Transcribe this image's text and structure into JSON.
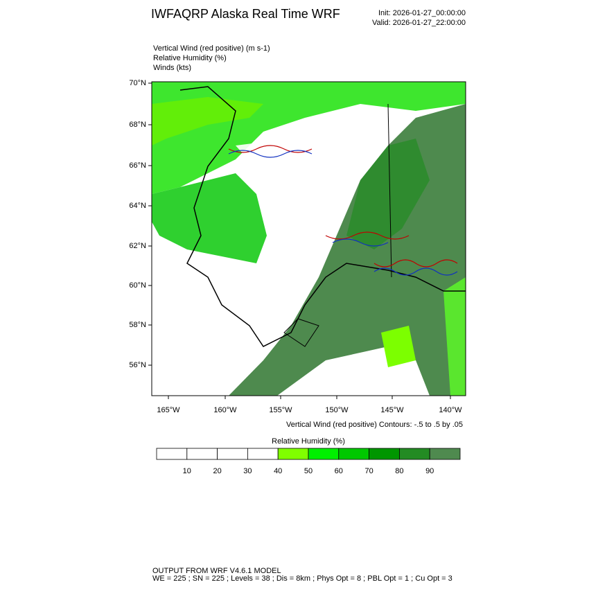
{
  "header": {
    "title": "IWFAQRP Alaska Real Time WRF",
    "init": "Init: 2026-01-27_00:00:00",
    "valid": "Valid: 2026-01-27_22:00:00"
  },
  "fields": [
    "Vertical Wind (red positive)   (m s-1)",
    "Relative Humidity   (%)",
    "Winds   (kts)"
  ],
  "map": {
    "lat_labels": [
      "70°N",
      "68°N",
      "66°N",
      "64°N",
      "62°N",
      "60°N",
      "58°N",
      "56°N"
    ],
    "lon_labels": [
      "165°W",
      "160°W",
      "155°W",
      "150°W",
      "145°W",
      "140°W"
    ],
    "contour_note": "Vertical Wind (red positive) Contours: -.5 to .5 by .05"
  },
  "colorbar": {
    "title": "Relative Humidity  (%)",
    "colors": [
      "#ffffff",
      "#ffffff",
      "#ffffff",
      "#ffffff",
      "#80ff00",
      "#00f000",
      "#00c800",
      "#009600",
      "#238b23",
      "#4f8a4f"
    ],
    "labels": [
      10,
      20,
      30,
      40,
      50,
      60,
      70,
      80,
      90
    ]
  },
  "footer": {
    "line1": "OUTPUT FROM WRF V4.6.1 MODEL",
    "line2": "WE = 225 ; SN = 225 ; Levels = 38 ; Dis = 8km ; Phys Opt = 8 ; PBL Opt = 1 ; Cu Opt = 3"
  }
}
